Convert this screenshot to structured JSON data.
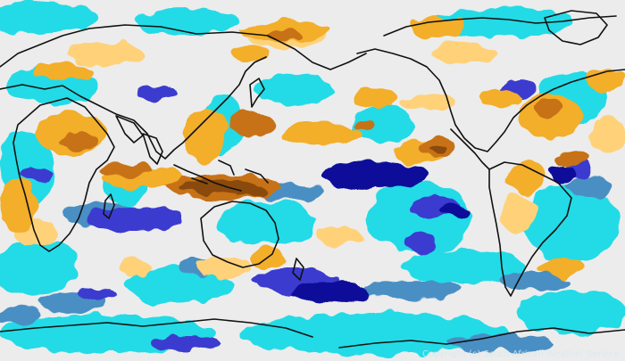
{
  "map": {
    "copyright": "Copyright (c) South African Weather Service",
    "colors": {
      "background": "#ececec",
      "light_cyan": "#7ff0f2",
      "cyan": "#22dbe6",
      "steel_blue": "#4a8fc4",
      "royal_blue": "#3a3ad0",
      "navy": "#0a0a9a",
      "light_orange": "#ffd27a",
      "orange": "#f3ae2a",
      "brown": "#c77212",
      "dark_brown": "#8a4a0a",
      "coastline": "#111111"
    }
  }
}
